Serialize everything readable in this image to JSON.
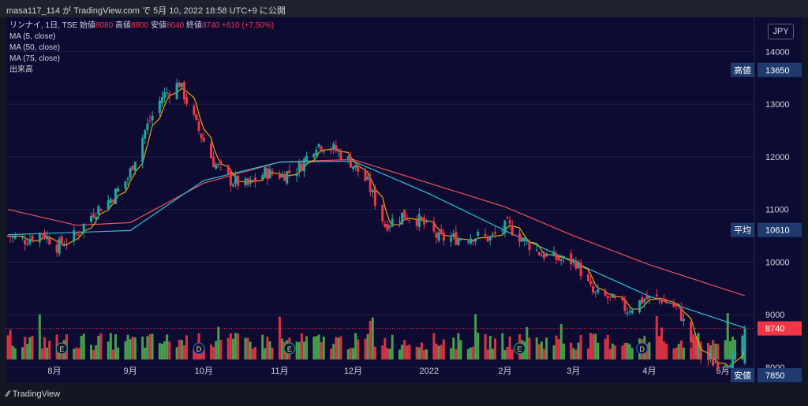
{
  "header": {
    "title": "masa117_114 が TradingView.com で 5月 10, 2022 18:58 UTC+9 に公開"
  },
  "legend": {
    "symbol": "リンナイ, 1日, TSE",
    "open_label": "始値",
    "open": "8080",
    "high_label": "高値",
    "high": "8800",
    "low_label": "安値",
    "low": "8040",
    "close_label": "終値",
    "close": "8740",
    "change": "+610 (+7.50%)",
    "ma5": "MA (5, close)",
    "ma50": "MA (50, close)",
    "ma75": "MA (75, close)",
    "volume": "出来高"
  },
  "currency": "JPY",
  "footer": {
    "logo_text": "TradingView"
  },
  "colors": {
    "up": "#26a69a",
    "down": "#f23645",
    "vol_up": "#4caf50",
    "vol_down": "#f23645",
    "ma5": "#ffb300",
    "ma50": "#26c6da",
    "ma75": "#ef5350",
    "tag_bg": "#1e3a6e"
  },
  "chart_data": {
    "type": "candlestick",
    "title": "リンナイ, 1日, TSE",
    "ylim": [
      7700,
      14650
    ],
    "yticks": [
      8000,
      9000,
      10000,
      11000,
      12000,
      13000,
      14000
    ],
    "x_ticks": [
      "8月",
      "9月",
      "10月",
      "11月",
      "12月",
      "2022",
      "2月",
      "3月",
      "4月",
      "5月"
    ],
    "price_series": {
      "name": "リンナイ",
      "x_start": "2021-07-13",
      "x_end": "2022-05-10",
      "close_points": [
        [
          "2021-07-13",
          10500
        ],
        [
          "2021-07-20",
          10420
        ],
        [
          "2021-07-27",
          10560
        ],
        [
          "2021-08-02",
          10300
        ],
        [
          "2021-08-10",
          10520
        ],
        [
          "2021-08-17",
          10950
        ],
        [
          "2021-08-24",
          11200
        ],
        [
          "2021-08-31",
          11600
        ],
        [
          "2021-09-07",
          12500
        ],
        [
          "2021-09-14",
          13150
        ],
        [
          "2021-09-21",
          13400
        ],
        [
          "2021-09-28",
          12600
        ],
        [
          "2021-10-05",
          11900
        ],
        [
          "2021-10-12",
          11550
        ],
        [
          "2021-10-19",
          11450
        ],
        [
          "2021-10-26",
          11700
        ],
        [
          "2021-11-02",
          11650
        ],
        [
          "2021-11-09",
          11800
        ],
        [
          "2021-11-16",
          12250
        ],
        [
          "2021-11-23",
          12150
        ],
        [
          "2021-11-30",
          11900
        ],
        [
          "2021-12-07",
          11500
        ],
        [
          "2021-12-14",
          10700
        ],
        [
          "2021-12-21",
          10900
        ],
        [
          "2021-12-28",
          10800
        ],
        [
          "2022-01-05",
          10450
        ],
        [
          "2022-01-12",
          10450
        ],
        [
          "2022-01-19",
          10500
        ],
        [
          "2022-01-26",
          10450
        ],
        [
          "2022-02-02",
          10700
        ],
        [
          "2022-02-09",
          10400
        ],
        [
          "2022-02-16",
          10150
        ],
        [
          "2022-02-23",
          10050
        ],
        [
          "2022-03-02",
          10000
        ],
        [
          "2022-03-09",
          9400
        ],
        [
          "2022-03-16",
          9300
        ],
        [
          "2022-03-23",
          9100
        ],
        [
          "2022-03-30",
          9300
        ],
        [
          "2022-04-06",
          9300
        ],
        [
          "2022-04-13",
          9100
        ],
        [
          "2022-04-20",
          8250
        ],
        [
          "2022-04-27",
          8100
        ],
        [
          "2022-05-06",
          8130
        ],
        [
          "2022-05-10",
          8740
        ]
      ]
    },
    "volume_bars": 205,
    "ma_series": [
      {
        "name": "MA (5, close)",
        "color": "#ffb300"
      },
      {
        "name": "MA (50, close)",
        "color": "#26c6da",
        "points": [
          [
            "2021-07-13",
            10520
          ],
          [
            "2021-09-01",
            10600
          ],
          [
            "2021-10-01",
            11550
          ],
          [
            "2021-11-01",
            11900
          ],
          [
            "2021-12-01",
            11920
          ],
          [
            "2022-01-01",
            11300
          ],
          [
            "2022-02-01",
            10600
          ],
          [
            "2022-03-01",
            10000
          ],
          [
            "2022-04-01",
            9350
          ],
          [
            "2022-05-10",
            8750
          ]
        ]
      },
      {
        "name": "MA (75, close)",
        "color": "#ef5350",
        "points": [
          [
            "2021-07-13",
            11000
          ],
          [
            "2021-08-10",
            10700
          ],
          [
            "2021-09-01",
            10750
          ],
          [
            "2021-10-01",
            11500
          ],
          [
            "2021-11-01",
            11900
          ],
          [
            "2021-12-01",
            11950
          ],
          [
            "2022-01-01",
            11500
          ],
          [
            "2022-02-01",
            11050
          ],
          [
            "2022-03-01",
            10500
          ],
          [
            "2022-04-01",
            9950
          ],
          [
            "2022-05-10",
            9360
          ]
        ]
      }
    ],
    "price_tags": [
      {
        "label": "高値",
        "value": "13650",
        "y": 13650
      },
      {
        "label": "平均",
        "value": "10610",
        "y": 10610
      },
      {
        "label": "",
        "value": "8740",
        "y": 8740,
        "highlight": true
      },
      {
        "label": "安値",
        "value": "7850",
        "y": 7850
      }
    ],
    "event_markers": [
      {
        "date": "2021-08-04",
        "kind": "E"
      },
      {
        "date": "2021-09-29",
        "kind": "D"
      },
      {
        "date": "2021-11-05",
        "kind": "E"
      },
      {
        "date": "2022-02-07",
        "kind": "E"
      },
      {
        "date": "2022-03-29",
        "kind": "D"
      }
    ]
  }
}
